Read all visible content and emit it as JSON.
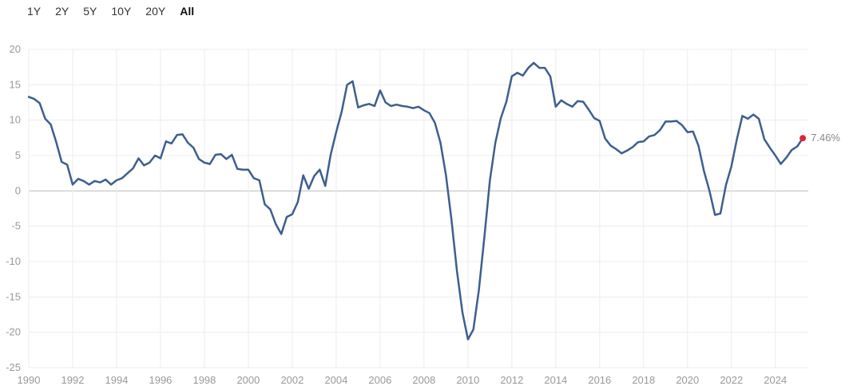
{
  "range_selector": {
    "options": [
      "1Y",
      "2Y",
      "5Y",
      "10Y",
      "20Y",
      "All"
    ],
    "selected": "All"
  },
  "end_label": "7.46%",
  "colors": {
    "line": "#3c5f8f",
    "end_marker": "#e0243b",
    "grid": "#ececec",
    "zero_line": "#bbbbbb"
  },
  "chart_data": {
    "type": "line",
    "title": "",
    "xlabel": "",
    "ylabel": "",
    "xlim": [
      1990,
      2025.5
    ],
    "ylim": [
      -25,
      20
    ],
    "y_ticks": [
      20,
      15,
      10,
      5,
      0,
      -5,
      -10,
      -15,
      -20,
      -25
    ],
    "y_tick_labels": [
      "20",
      "15",
      "10",
      "5",
      "0",
      "-5",
      "-10",
      "-15",
      "-20",
      "-25"
    ],
    "x_ticks": [
      1990,
      1992,
      1994,
      1996,
      1998,
      2000,
      2002,
      2004,
      2006,
      2008,
      2010,
      2012,
      2014,
      2016,
      2018,
      2020,
      2022,
      2024
    ],
    "x_tick_labels": [
      "1990",
      "1992",
      "1994",
      "1996",
      "1998",
      "2000",
      "2002",
      "2004",
      "2006",
      "2008",
      "2010",
      "2012",
      "2014",
      "2016",
      "2018",
      "2020",
      "2022",
      "2024"
    ],
    "grid": true,
    "series": [
      {
        "x": [
          1990.0,
          1990.25,
          1990.5,
          1990.75,
          1991.0,
          1991.25,
          1991.5,
          1991.75,
          1992.0,
          1992.25,
          1992.5,
          1992.75,
          1993.0,
          1993.25,
          1993.5,
          1993.75,
          1994.0,
          1994.25,
          1994.5,
          1994.75,
          1995.0,
          1995.25,
          1995.5,
          1995.75,
          1996.0,
          1996.25,
          1996.5,
          1996.75,
          1997.0,
          1997.25,
          1997.5,
          1997.75,
          1998.0,
          1998.25,
          1998.5,
          1998.75,
          1999.0,
          1999.25,
          1999.5,
          1999.75,
          2000.0,
          2000.25,
          2000.5,
          2000.75,
          2001.0,
          2001.25,
          2001.5,
          2001.75,
          2002.0,
          2002.25,
          2002.5,
          2002.75,
          2003.0,
          2003.25,
          2003.5,
          2003.75,
          2004.0,
          2004.25,
          2004.5,
          2004.75,
          2005.0,
          2005.25,
          2005.5,
          2005.75,
          2006.0,
          2006.25,
          2006.5,
          2006.75,
          2007.0,
          2007.25,
          2007.5,
          2007.75,
          2008.0,
          2008.25,
          2008.5,
          2008.75,
          2009.0,
          2009.25,
          2009.5,
          2009.75,
          2010.0,
          2010.25,
          2010.5,
          2010.75,
          2011.0,
          2011.25,
          2011.5,
          2011.75,
          2012.0,
          2012.25,
          2012.5,
          2012.75,
          2013.0,
          2013.25,
          2013.5,
          2013.75,
          2014.0,
          2014.25,
          2014.5,
          2014.75,
          2015.0,
          2015.25,
          2015.5,
          2015.75,
          2016.0,
          2016.25,
          2016.5,
          2016.75,
          2017.0,
          2017.25,
          2017.5,
          2017.75,
          2018.0,
          2018.25,
          2018.5,
          2018.75,
          2019.0,
          2019.25,
          2019.5,
          2019.75,
          2020.0,
          2020.25,
          2020.5,
          2020.75,
          2021.0,
          2021.25,
          2021.5,
          2021.75,
          2022.0,
          2022.25,
          2022.5,
          2022.75,
          2023.0,
          2023.25,
          2023.5,
          2023.75,
          2024.0,
          2024.25,
          2024.5,
          2024.75,
          2025.0,
          2025.25
        ],
        "values": [
          13.3,
          13.0,
          12.4,
          10.2,
          9.4,
          6.9,
          4.1,
          3.7,
          0.9,
          1.7,
          1.4,
          0.9,
          1.4,
          1.2,
          1.6,
          0.9,
          1.5,
          1.8,
          2.5,
          3.2,
          4.6,
          3.6,
          4.0,
          5.0,
          4.6,
          7.0,
          6.7,
          7.9,
          8.0,
          6.8,
          6.1,
          4.5,
          4.0,
          3.8,
          5.1,
          5.2,
          4.5,
          5.1,
          3.1,
          3.0,
          3.0,
          1.8,
          1.5,
          -1.9,
          -2.6,
          -4.7,
          -6.1,
          -3.7,
          -3.3,
          -1.6,
          2.2,
          0.3,
          2.1,
          3.0,
          0.7,
          5.1,
          8.3,
          11.2,
          15.0,
          15.5,
          11.8,
          12.1,
          12.3,
          12.0,
          14.2,
          12.5,
          12.0,
          12.2,
          12.0,
          11.9,
          11.7,
          11.9,
          11.4,
          11.0,
          9.6,
          6.8,
          2.2,
          -4.0,
          -11.3,
          -17.2,
          -21.0,
          -19.6,
          -14.0,
          -6.5,
          1.5,
          6.8,
          10.3,
          12.6,
          16.2,
          16.7,
          16.3,
          17.4,
          18.1,
          17.4,
          17.4,
          16.2,
          11.9,
          12.8,
          12.3,
          11.9,
          12.7,
          12.6,
          11.5,
          10.3,
          9.9,
          7.4,
          6.4,
          5.9,
          5.3,
          5.7,
          6.2,
          6.9,
          7.0,
          7.7,
          7.9,
          8.6,
          9.8,
          9.8,
          9.9,
          9.3,
          8.3,
          8.4,
          6.4,
          2.8,
          0.0,
          -3.4,
          -3.2,
          0.8,
          3.5,
          7.3,
          10.6,
          10.2,
          10.8,
          10.2,
          7.3,
          6.1,
          5.0,
          3.8,
          4.7,
          5.8,
          6.3,
          7.46
        ]
      }
    ]
  }
}
